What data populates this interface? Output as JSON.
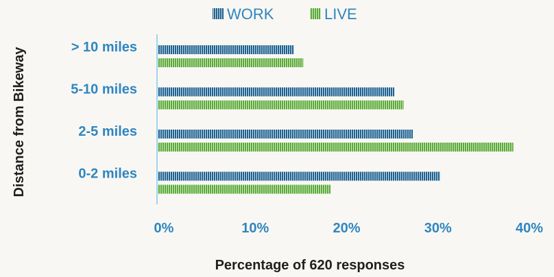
{
  "chart_data": {
    "type": "bar",
    "orientation": "horizontal",
    "title": "",
    "xlabel": "Percentage of 620 responses",
    "ylabel": "Distance from Bikeway",
    "categories": [
      "> 10 miles",
      "5-10 miles",
      "2-5 miles",
      "0-2 miles"
    ],
    "series": [
      {
        "name": "WORK",
        "values": [
          15,
          26,
          28,
          31
        ],
        "color": "#1f5f8b"
      },
      {
        "name": "LIVE",
        "values": [
          16,
          27,
          39,
          19
        ],
        "color": "#6ab04c"
      }
    ],
    "xlim": [
      0,
      40
    ],
    "xticks": [
      "0%",
      "10%",
      "20%",
      "30%",
      "40%"
    ],
    "grid": false,
    "legend_position": "top"
  }
}
